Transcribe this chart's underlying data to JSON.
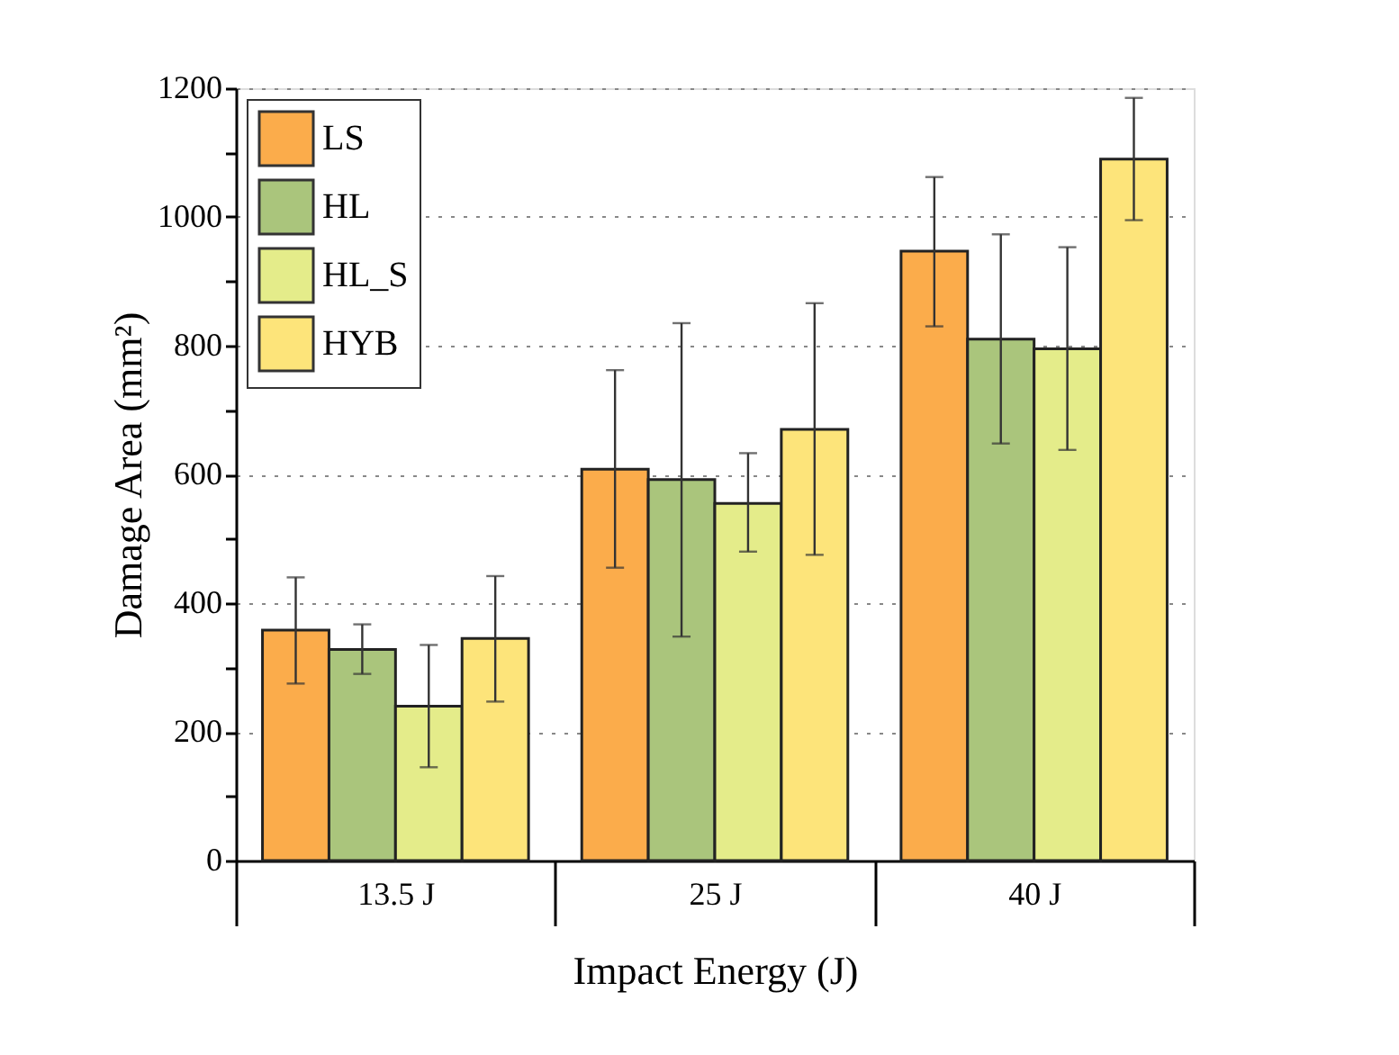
{
  "chart_data": {
    "type": "bar",
    "xlabel": "Impact Energy (J)",
    "ylabel": "Damage Area (mm²)",
    "categories": [
      "13.5 J",
      "25 J",
      "40 J"
    ],
    "series": [
      {
        "name": "LS",
        "color": "#fbac4b",
        "values": [
          358,
          608,
          947
        ],
        "errors": [
          [
            275,
            440
          ],
          [
            455,
            762
          ],
          [
            830,
            1062
          ]
        ]
      },
      {
        "name": "HL",
        "color": "#aac57c",
        "values": [
          328,
          592,
          810
        ],
        "errors": [
          [
            290,
            367
          ],
          [
            348,
            835
          ],
          [
            648,
            973
          ]
        ]
      },
      {
        "name": "HL_S",
        "color": "#e4ec8a",
        "values": [
          240,
          555,
          795
        ],
        "errors": [
          [
            145,
            335
          ],
          [
            480,
            633
          ],
          [
            638,
            953
          ]
        ]
      },
      {
        "name": "HYB",
        "color": "#fde47a",
        "values": [
          345,
          670,
          1090
        ],
        "errors": [
          [
            247,
            442
          ],
          [
            475,
            866
          ],
          [
            995,
            1185
          ]
        ]
      }
    ],
    "ylim": [
      0,
      1200
    ],
    "yticks": [
      0,
      {
        "value": 100,
        "label": null
      },
      200,
      {
        "value": 300,
        "label": null
      },
      400,
      {
        "value": 500,
        "label": null
      },
      600,
      {
        "value": 700,
        "label": null
      },
      800,
      {
        "value": 900,
        "label": null
      },
      1000,
      {
        "value": 1100,
        "label": null
      },
      1200
    ],
    "grid": "y",
    "legend": "top left"
  }
}
